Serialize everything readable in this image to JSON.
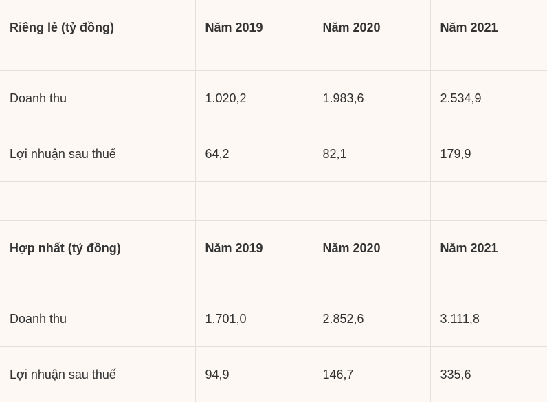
{
  "table": {
    "section_1": {
      "header": [
        "Riêng lẻ (tỷ đồng)",
        "Năm 2019",
        "Năm 2020",
        "Năm 2021"
      ],
      "rows": [
        [
          "Doanh thu",
          "1.020,2",
          "1.983,6",
          "2.534,9"
        ],
        [
          "Lợi nhuận sau thuế",
          "64,2",
          "82,1",
          "179,9"
        ]
      ]
    },
    "section_2": {
      "header": [
        "Hợp nhất (tỷ đồng)",
        "Năm 2019",
        "Năm 2020",
        "Năm 2021"
      ],
      "rows": [
        [
          "Doanh thu",
          "1.701,0",
          "2.852,6",
          "3.111,8"
        ],
        [
          "Lợi nhuận sau thuế",
          "94,9",
          "146,7",
          "335,6"
        ]
      ]
    }
  },
  "colors": {
    "background": "#fdf8f4",
    "border": "#e2dfdc",
    "text": "#333333"
  }
}
